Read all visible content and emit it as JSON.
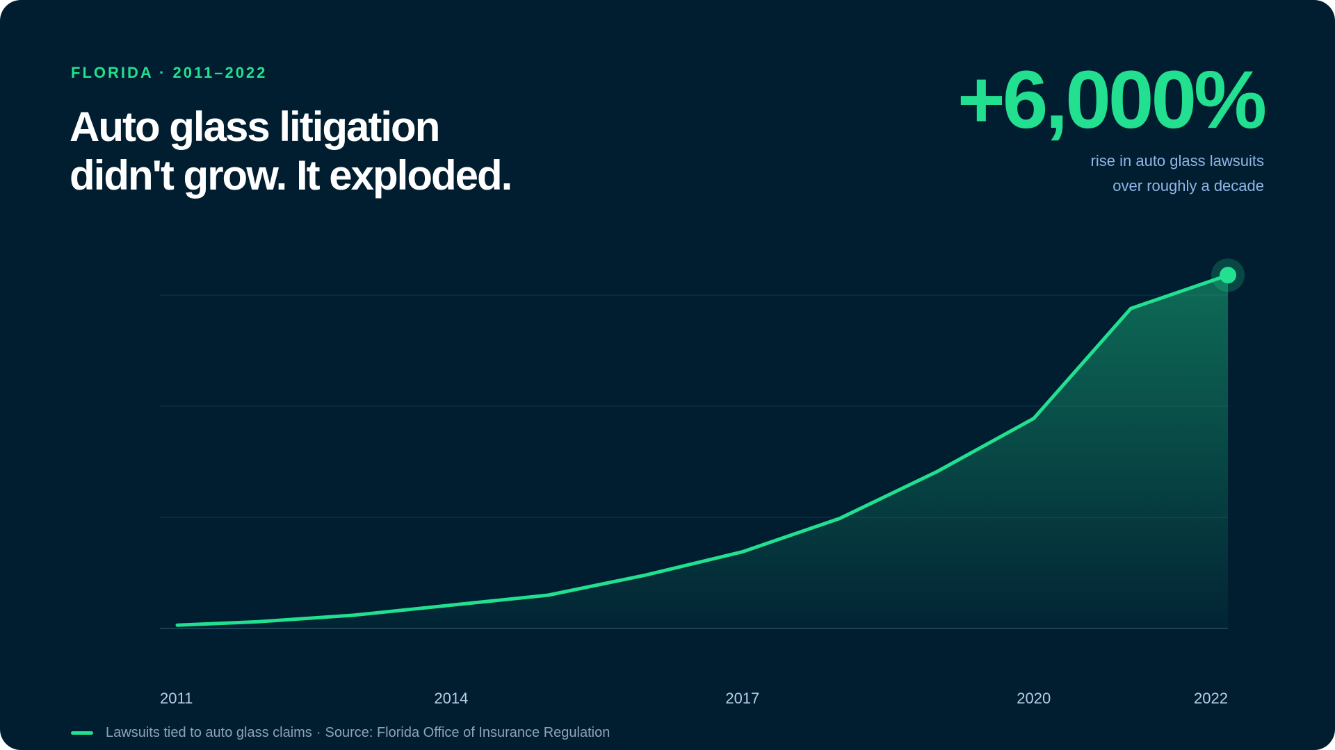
{
  "eyebrow": "FLORIDA · 2011–2022",
  "headline": {
    "line1": "Auto glass litigation",
    "line2": "didn't grow. It exploded."
  },
  "stat": {
    "value": "+6,000%",
    "caption_line1": "rise in auto glass lawsuits",
    "caption_line2": "over roughly a decade"
  },
  "legend": {
    "series_label": "Lawsuits tied to auto glass claims",
    "separator": "·",
    "source": "Source: Florida Office of Insurance Regulation"
  },
  "colors": {
    "background": "#011e31",
    "accent": "#22e08f",
    "caption": "#8fb6e6",
    "legend_text": "#8ea2b8",
    "tick_text": "#b9cde6",
    "grid": "#12344a"
  },
  "chart_data": {
    "type": "area",
    "title": "",
    "xlabel": "",
    "ylabel": "",
    "x": [
      2011,
      2012,
      2013,
      2014,
      2015,
      2016,
      2017,
      2018,
      2019,
      2020,
      2021,
      2022
    ],
    "series": [
      {
        "name": "Lawsuits tied to auto glass claims",
        "values": [
          1,
          2,
          4,
          7,
          10,
          16,
          23,
          33,
          47,
          63,
          96,
          106
        ]
      }
    ],
    "x_ticks": [
      "2011",
      "2014",
      "2017",
      "2020",
      "2022"
    ],
    "ylim": [
      0,
      100
    ],
    "grid": true,
    "y_axis_labels": false,
    "highlight_last_point": true,
    "legend_position": "bottom-left"
  }
}
